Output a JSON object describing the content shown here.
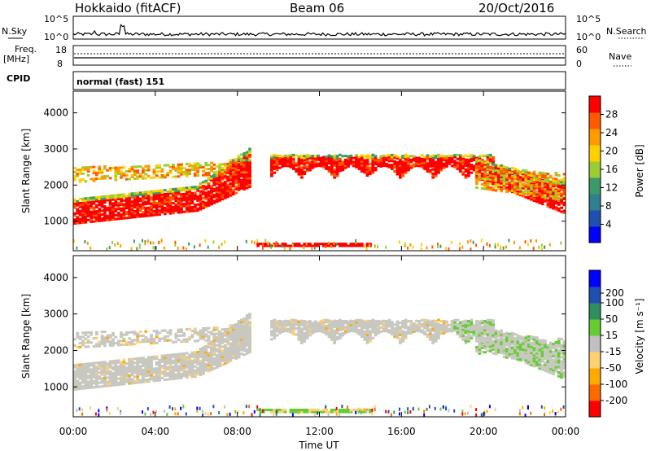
{
  "header": {
    "radar": "Hokkaido (fitACF)",
    "beam": "Beam 06",
    "date": "20/Oct/2016"
  },
  "top_panels": {
    "nsky_label": "N.Sky",
    "nsky_ticks": [
      "10^5",
      "10^0"
    ],
    "nsearch_label": "N.Search",
    "nsearch_ticks": [
      "10^5",
      "10^0"
    ],
    "freq_label": "Freq.",
    "freq_unit": "[MHz]",
    "freq_ticks": [
      "18",
      "8"
    ],
    "nave_label": "Nave",
    "nave_ticks": [
      "60",
      "0"
    ],
    "cpid_label": "CPID",
    "cpid_text": "normal (fast) 151"
  },
  "chart_data": [
    {
      "type": "heatmap",
      "name": "power",
      "ylabel": "Slant Range [km]",
      "ylim": [
        180,
        4600
      ],
      "yticks": [
        "1000",
        "2000",
        "3000",
        "4000"
      ],
      "xlim": [
        0,
        24
      ],
      "colorbar": {
        "label": "Power [dB]",
        "range": [
          0,
          32
        ],
        "ticks": [
          "4",
          "8",
          "12",
          "16",
          "20",
          "24",
          "28"
        ],
        "colors": [
          "#0000ff",
          "#1f4fb0",
          "#2f7f8f",
          "#3c9a6a",
          "#9acd32",
          "#ffd000",
          "#ff9a00",
          "#ff5a00",
          "#ff0000"
        ]
      },
      "echo_bands": [
        {
          "label": "near-range E/ground band",
          "t": [
            0,
            8.6
          ],
          "range": [
            1000,
            1800
          ],
          "level": 28
        },
        {
          "label": "upper band pre-dawn",
          "t": [
            0,
            7.5
          ],
          "range": [
            2000,
            2500
          ],
          "level": 20
        },
        {
          "label": "daytime F-region band",
          "t": [
            9.5,
            20.5
          ],
          "range": [
            2100,
            2800
          ],
          "level": 28
        },
        {
          "label": "evening decent",
          "t": [
            20,
            24
          ],
          "range": [
            1000,
            2300
          ],
          "level": 28
        },
        {
          "label": "near-range strip",
          "t": [
            8.8,
            14
          ],
          "range": [
            280,
            360
          ],
          "level": 30
        }
      ]
    },
    {
      "type": "heatmap",
      "name": "velocity",
      "ylabel": "Slant Range [km]",
      "ylim": [
        180,
        4600
      ],
      "yticks": [
        "1000",
        "2000",
        "3000",
        "4000"
      ],
      "xlim": [
        0,
        24
      ],
      "xticks": [
        "00:00",
        "04:00",
        "08:00",
        "12:00",
        "16:00",
        "20:00",
        "00:00"
      ],
      "xlabel": "Time UT",
      "colorbar": {
        "label": "Velocity [m s⁻¹]",
        "range": [
          -250,
          250
        ],
        "ticks": [
          "200",
          "100",
          "50",
          "15",
          "-15",
          "-50",
          "-100",
          "-200"
        ],
        "colors": [
          "#ff0000",
          "#ff6a00",
          "#ffaa00",
          "#ffd070",
          "#c0c0c0",
          "#66cc33",
          "#2f8f5f",
          "#1f4fb0",
          "#0000ff"
        ]
      },
      "ground_scatter_color": "#c8c8c0"
    }
  ]
}
